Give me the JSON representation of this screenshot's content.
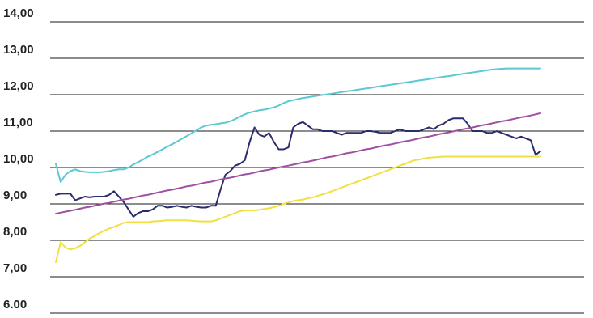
{
  "chart_data": {
    "type": "line",
    "title": "",
    "xlabel": "",
    "ylabel": "",
    "ylim": [
      6,
      14
    ],
    "grid": true,
    "legend": "none",
    "y_ticks": [
      {
        "value": 14,
        "label": "14,00"
      },
      {
        "value": 13,
        "label": "13,00"
      },
      {
        "value": 12,
        "label": "12,00"
      },
      {
        "value": 11,
        "label": "11,00"
      },
      {
        "value": 10,
        "label": "10,00"
      },
      {
        "value": 9,
        "label": "9,00"
      },
      {
        "value": 8,
        "label": "8,00"
      },
      {
        "value": 7,
        "label": "7,00"
      },
      {
        "value": 6,
        "label": "6.00"
      }
    ],
    "x": [
      0,
      1,
      2,
      3,
      4,
      5,
      6,
      7,
      8,
      9,
      10,
      11,
      12,
      13,
      14,
      15,
      16,
      17,
      18,
      19,
      20,
      21,
      22,
      23,
      24,
      25,
      26,
      27,
      28,
      29,
      30,
      31,
      32,
      33,
      34,
      35,
      36,
      37,
      38,
      39,
      40,
      41,
      42,
      43,
      44,
      45,
      46,
      47,
      48,
      49,
      50,
      51,
      52,
      53,
      54,
      55,
      56,
      57,
      58,
      59,
      60,
      61,
      62,
      63,
      64,
      65,
      66,
      67,
      68,
      69,
      70,
      71,
      72,
      73,
      74,
      75,
      76,
      77,
      78,
      79,
      80,
      81,
      82,
      83,
      84,
      85,
      86,
      87,
      88,
      89,
      90,
      91,
      92,
      93,
      94,
      95,
      96,
      97,
      98,
      99,
      100
    ],
    "series": [
      {
        "color": "#2b2b6e",
        "values": [
          9.25,
          9.28,
          9.28,
          9.28,
          9.1,
          9.15,
          9.2,
          9.18,
          9.2,
          9.2,
          9.2,
          9.25,
          9.35,
          9.2,
          9.05,
          8.85,
          8.65,
          8.75,
          8.8,
          8.8,
          8.85,
          8.95,
          8.95,
          8.9,
          8.92,
          8.95,
          8.92,
          8.9,
          8.95,
          8.92,
          8.9,
          8.9,
          8.95,
          8.95,
          9.4,
          9.8,
          9.9,
          10.05,
          10.1,
          10.2,
          10.7,
          11.1,
          10.9,
          10.85,
          10.95,
          10.7,
          10.5,
          10.5,
          10.55,
          11.1,
          11.2,
          11.25,
          11.15,
          11.05,
          11.05,
          11.0,
          11.0,
          11.0,
          10.95,
          10.9,
          10.95,
          10.95,
          10.95,
          10.95,
          11.0,
          11.0,
          10.98,
          10.95,
          10.95,
          10.95,
          11.0,
          11.05,
          11.0,
          11.0,
          11.0,
          11.0,
          11.05,
          11.1,
          11.05,
          11.15,
          11.2,
          11.3,
          11.35,
          11.35,
          11.35,
          11.2,
          11.0,
          11.0,
          11.0,
          10.95,
          10.95,
          11.0,
          10.95,
          10.9,
          10.85,
          10.8,
          10.85,
          10.8,
          10.75,
          10.35,
          10.45
        ]
      },
      {
        "color": "#5bc8d2",
        "values": [
          10.1,
          9.6,
          9.8,
          9.9,
          9.95,
          9.9,
          9.88,
          9.87,
          9.87,
          9.87,
          9.88,
          9.9,
          9.93,
          9.95,
          9.95,
          10.0,
          10.08,
          10.15,
          10.22,
          10.3,
          10.36,
          10.43,
          10.5,
          10.57,
          10.64,
          10.71,
          10.79,
          10.86,
          10.94,
          11.02,
          11.1,
          11.15,
          11.17,
          11.19,
          11.21,
          11.23,
          11.27,
          11.33,
          11.4,
          11.46,
          11.51,
          11.54,
          11.57,
          11.59,
          11.62,
          11.65,
          11.7,
          11.77,
          11.82,
          11.85,
          11.88,
          11.91,
          11.93,
          11.95,
          11.97,
          11.99,
          12.01,
          12.03,
          12.05,
          12.07,
          12.09,
          12.11,
          12.13,
          12.15,
          12.17,
          12.19,
          12.21,
          12.23,
          12.25,
          12.27,
          12.29,
          12.31,
          12.33,
          12.35,
          12.37,
          12.39,
          12.41,
          12.43,
          12.45,
          12.47,
          12.49,
          12.51,
          12.53,
          12.55,
          12.57,
          12.59,
          12.61,
          12.63,
          12.65,
          12.67,
          12.69,
          12.7,
          12.71,
          12.72,
          12.72,
          12.72,
          12.72,
          12.72,
          12.72,
          12.72,
          12.72
        ]
      },
      {
        "color": "#f0e040",
        "values": [
          7.4,
          7.95,
          7.8,
          7.75,
          7.78,
          7.85,
          7.95,
          8.05,
          8.12,
          8.2,
          8.27,
          8.32,
          8.37,
          8.42,
          8.48,
          8.5,
          8.5,
          8.5,
          8.5,
          8.5,
          8.52,
          8.53,
          8.54,
          8.55,
          8.55,
          8.55,
          8.55,
          8.55,
          8.54,
          8.53,
          8.52,
          8.52,
          8.52,
          8.55,
          8.6,
          8.65,
          8.7,
          8.75,
          8.8,
          8.82,
          8.82,
          8.82,
          8.84,
          8.86,
          8.88,
          8.91,
          8.95,
          9.0,
          9.04,
          9.08,
          9.1,
          9.12,
          9.15,
          9.18,
          9.22,
          9.26,
          9.3,
          9.35,
          9.4,
          9.45,
          9.5,
          9.55,
          9.6,
          9.65,
          9.7,
          9.75,
          9.8,
          9.85,
          9.9,
          9.95,
          10.0,
          10.05,
          10.1,
          10.15,
          10.2,
          10.22,
          10.25,
          10.27,
          10.28,
          10.29,
          10.3,
          10.3,
          10.3,
          10.3,
          10.3,
          10.3,
          10.3,
          10.3,
          10.3,
          10.3,
          10.3,
          10.3,
          10.3,
          10.3,
          10.3,
          10.3,
          10.3,
          10.3,
          10.3,
          10.3,
          10.3
        ]
      },
      {
        "color": "#a050a0",
        "values": [
          8.73,
          8.76,
          8.79,
          8.81,
          8.84,
          8.87,
          8.9,
          8.92,
          8.95,
          8.98,
          9.01,
          9.03,
          9.06,
          9.09,
          9.12,
          9.14,
          9.17,
          9.2,
          9.23,
          9.25,
          9.28,
          9.31,
          9.34,
          9.37,
          9.39,
          9.42,
          9.45,
          9.48,
          9.5,
          9.53,
          9.56,
          9.59,
          9.61,
          9.64,
          9.67,
          9.7,
          9.72,
          9.75,
          9.78,
          9.81,
          9.83,
          9.86,
          9.89,
          9.92,
          9.94,
          9.97,
          10.0,
          10.03,
          10.05,
          10.08,
          10.11,
          10.14,
          10.16,
          10.19,
          10.22,
          10.25,
          10.28,
          10.3,
          10.33,
          10.36,
          10.39,
          10.41,
          10.44,
          10.47,
          10.5,
          10.52,
          10.55,
          10.58,
          10.61,
          10.63,
          10.66,
          10.69,
          10.72,
          10.74,
          10.77,
          10.8,
          10.83,
          10.85,
          10.88,
          10.91,
          10.94,
          10.96,
          10.99,
          11.02,
          11.05,
          11.07,
          11.1,
          11.13,
          11.16,
          11.18,
          11.21,
          11.24,
          11.27,
          11.29,
          11.32,
          11.35,
          11.38,
          11.4,
          11.43,
          11.46,
          11.49
        ]
      }
    ]
  }
}
